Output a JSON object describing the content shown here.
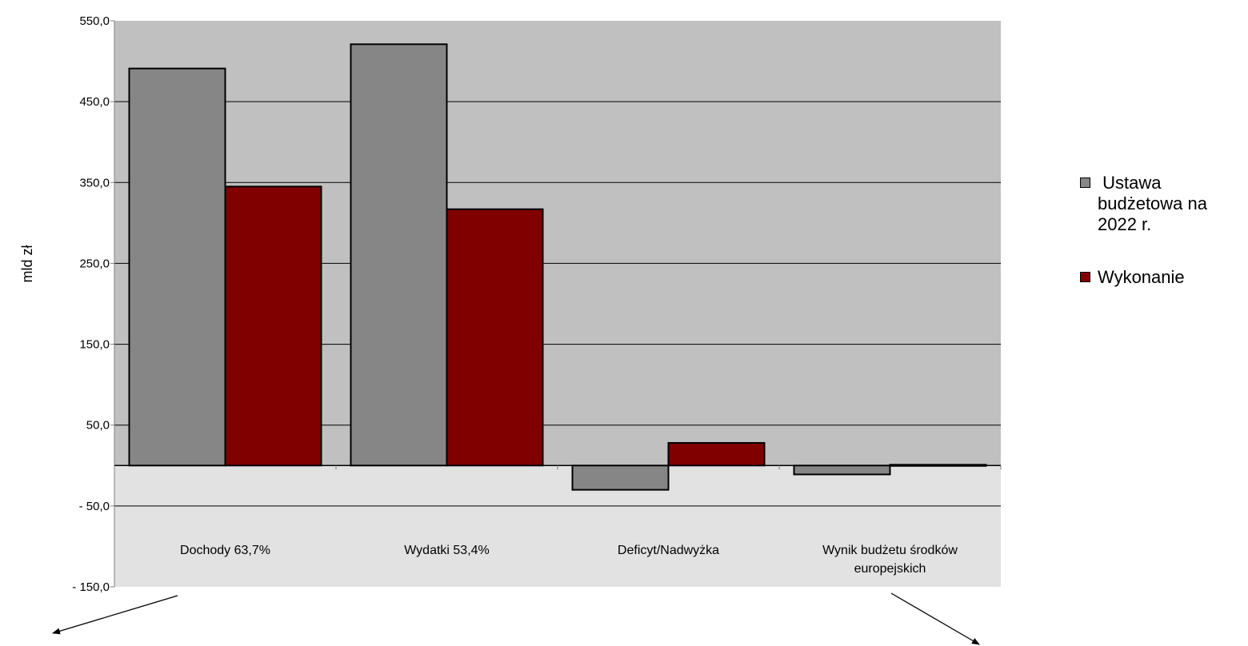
{
  "chart_data": {
    "type": "bar",
    "categories": [
      "Dochody 63,7%",
      "Wydatki 53,4%",
      "Deficyt/Nadwyżka",
      "Wynik budżetu środków europejskich"
    ],
    "category_lines": [
      [
        "Dochody 63,7%"
      ],
      [
        "Wydatki 53,4%"
      ],
      [
        "Deficyt/Nadwyżka"
      ],
      [
        "Wynik budżetu środków",
        "europejskich"
      ]
    ],
    "series": [
      {
        "name": " Ustawa budżetowa na 2022 r.",
        "values": [
          491.0,
          521.0,
          -30.0,
          -11.0
        ],
        "color": "#868686"
      },
      {
        "name": "Wykonanie",
        "values": [
          345.0,
          317.0,
          28.0,
          1.0
        ],
        "color": "#800000"
      }
    ],
    "ylabel": "mld zł",
    "ylim": [
      -150,
      550
    ],
    "yticks": [
      550,
      450,
      350,
      250,
      150,
      50,
      -50,
      -150
    ],
    "ytick_labels": [
      "550,0",
      "450,0",
      "350,0",
      "250,0",
      "150,0",
      "50,0",
      "- 50,0",
      "- 150,0"
    ],
    "grid": true,
    "legend_position": "right",
    "colors": {
      "plot_background_upper": "#c0c0c0",
      "plot_background_lower": "#e2e2e2"
    }
  },
  "legend": {
    "item1_lines": [
      " Ustawa",
      "budżetowa na",
      "2022 r."
    ],
    "item2": "Wykonanie"
  }
}
